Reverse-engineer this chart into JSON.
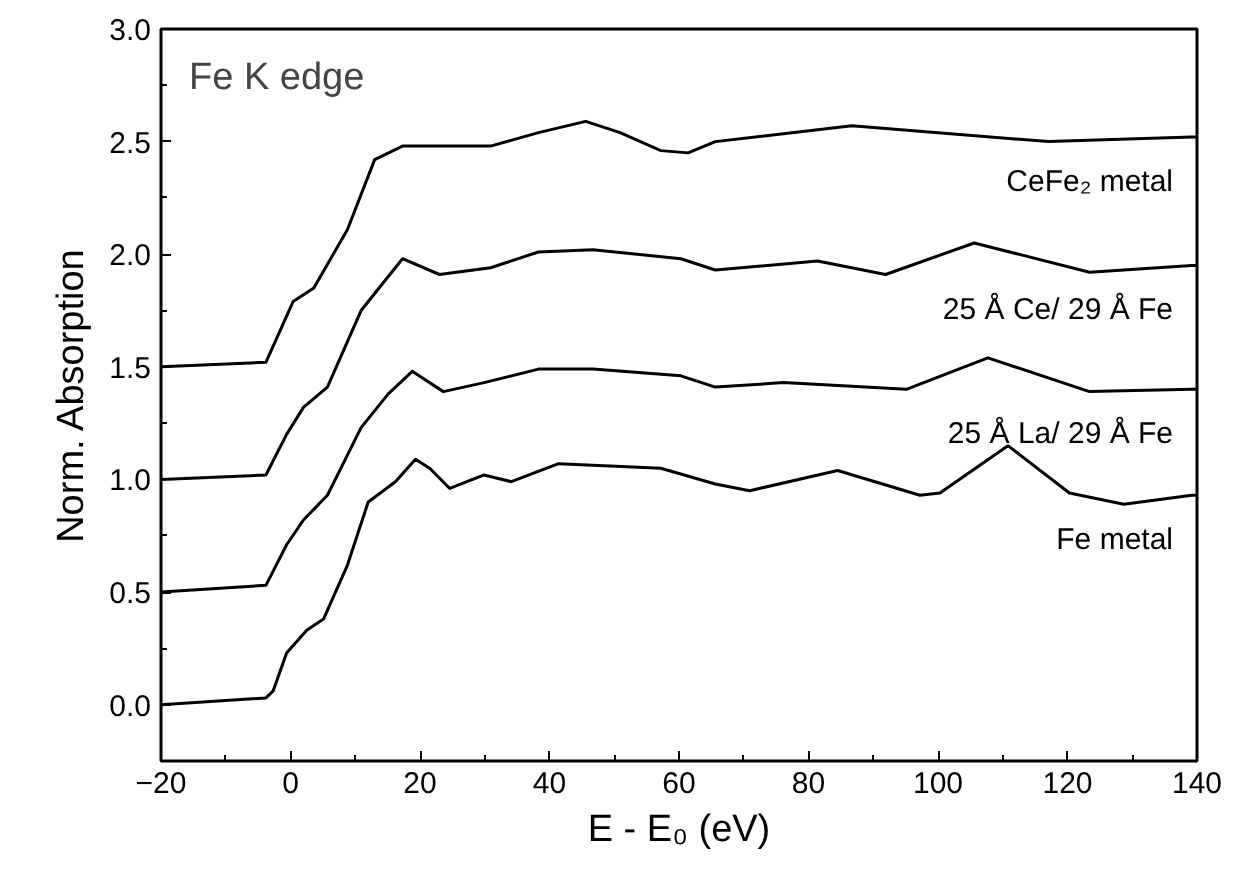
{
  "chart_data": {
    "type": "line",
    "xlabel": "E - E₀ (eV)",
    "ylabel": "Norm. Absorption",
    "annotations": [
      "Fe K edge"
    ],
    "xlim": [
      -20,
      140
    ],
    "xticks": [
      -20,
      0,
      20,
      40,
      60,
      80,
      100,
      120,
      140
    ],
    "ylim": [
      -0.25,
      3.0
    ],
    "yticks": [
      {
        "value": 0,
        "label": "0.0"
      },
      0.5,
      {
        "value": 1,
        "label": "1.0"
      },
      1.5,
      {
        "value": 2,
        "label": "2.0"
      },
      2.5,
      {
        "value": 3,
        "label": "3.0"
      }
    ],
    "grid": false,
    "legend": false,
    "line_style": "solid",
    "marker": "none",
    "series": [
      {
        "name": "CeFe₂ metal",
        "color": "#000000",
        "x": [
          -20,
          -3.8,
          0.4,
          3.6,
          8.8,
          13.0,
          17.3,
          30.9,
          38.3,
          45.6,
          50.9,
          57.2,
          61.4,
          65.6,
          86.7,
          117.1,
          139.2,
          140
        ],
        "values": [
          1.5,
          1.52,
          1.79,
          1.85,
          2.11,
          2.42,
          2.48,
          2.48,
          2.54,
          2.59,
          2.54,
          2.46,
          2.45,
          2.5,
          2.57,
          2.5,
          2.52,
          2.52
        ]
      },
      {
        "name": "25 Å Ce/ 29 Å Fe",
        "color": "#000000",
        "x": [
          -20,
          -3.8,
          -0.6,
          2.0,
          5.7,
          10.9,
          17.3,
          23.0,
          30.9,
          38.3,
          46.7,
          60.3,
          65.6,
          81.4,
          91.9,
          105.6,
          123.4,
          139.2,
          140
        ],
        "values": [
          1.0,
          1.02,
          1.2,
          1.32,
          1.41,
          1.75,
          1.98,
          1.91,
          1.94,
          2.01,
          2.02,
          1.98,
          1.93,
          1.97,
          1.91,
          2.05,
          1.92,
          1.95,
          1.95
        ]
      },
      {
        "name": "25 Å La/ 29 Å Fe",
        "color": "#000000",
        "x": [
          -20,
          -3.8,
          -0.6,
          2.0,
          5.7,
          10.9,
          15.1,
          18.8,
          23.6,
          29.9,
          38.3,
          46.7,
          60.3,
          65.6,
          76.1,
          95.1,
          107.7,
          123.4,
          139.2,
          140
        ],
        "values": [
          0.5,
          0.53,
          0.71,
          0.82,
          0.93,
          1.23,
          1.38,
          1.48,
          1.39,
          1.43,
          1.49,
          1.49,
          1.46,
          1.41,
          1.43,
          1.4,
          1.54,
          1.39,
          1.4,
          1.4
        ]
      },
      {
        "name": "Fe metal",
        "color": "#000000",
        "x": [
          -20,
          -3.8,
          -2.7,
          -0.6,
          2.5,
          5.1,
          8.8,
          12.0,
          16.2,
          19.3,
          21.5,
          24.6,
          29.9,
          34.1,
          41.4,
          57.2,
          65.6,
          70.9,
          84.5,
          97.2,
          100.3,
          110.8,
          120.3,
          128.7,
          139.2,
          140
        ],
        "values": [
          0.0,
          0.03,
          0.06,
          0.23,
          0.33,
          0.38,
          0.62,
          0.9,
          0.99,
          1.09,
          1.05,
          0.96,
          1.02,
          0.99,
          1.07,
          1.05,
          0.98,
          0.95,
          1.04,
          0.93,
          0.94,
          1.15,
          0.94,
          0.89,
          0.93,
          0.93
        ]
      }
    ]
  }
}
